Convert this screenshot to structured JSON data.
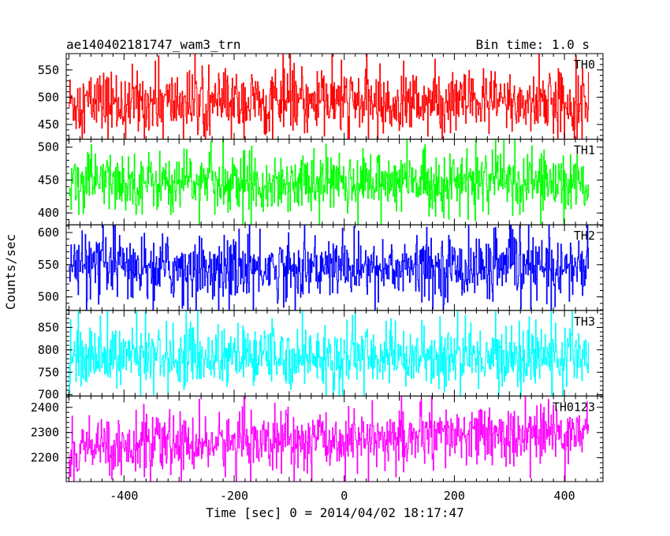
{
  "header": {
    "title": "ae140402181747_wam3_trn",
    "bin_time": "Bin time: 1.0 s"
  },
  "chart_data": {
    "type": "line",
    "xlabel": "Time [sec] 0 = 2014/04/02 18:17:47",
    "ylabel": "Counts/sec",
    "xlim": [
      -505,
      470
    ],
    "x_range_data": [
      -500,
      444
    ],
    "x_ticks": [
      -400,
      -200,
      0,
      200,
      400
    ],
    "panels": [
      {
        "name": "TH0",
        "color": "#ff0000",
        "ylim": [
          423,
          580
        ],
        "yticks": [
          450,
          500,
          550
        ],
        "mean": 490,
        "amp": 30,
        "wspike": 55,
        "trend": 0
      },
      {
        "name": "TH1",
        "color": "#00ff00",
        "ylim": [
          382,
          512
        ],
        "yticks": [
          400,
          450,
          500
        ],
        "mean": 447,
        "amp": 22,
        "wspike": 50,
        "trend": 0
      },
      {
        "name": "TH2",
        "color": "#0000ff",
        "ylim": [
          479,
          612
        ],
        "yticks": [
          500,
          550,
          600
        ],
        "mean": 545,
        "amp": 24,
        "wspike": 55,
        "trend": 0
      },
      {
        "name": "TH3",
        "color": "#00ffff",
        "ylim": [
          697,
          888
        ],
        "yticks": [
          700,
          750,
          800,
          850
        ],
        "mean": 785,
        "amp": 33,
        "wspike": 80,
        "trend": 0
      },
      {
        "name": "TH0123",
        "color": "#ff00ff",
        "ylim": [
          2105,
          2445
        ],
        "yticks": [
          2200,
          2300,
          2400
        ],
        "mean": 2240,
        "amp": 55,
        "wspike": 140,
        "trend": 60
      }
    ]
  }
}
